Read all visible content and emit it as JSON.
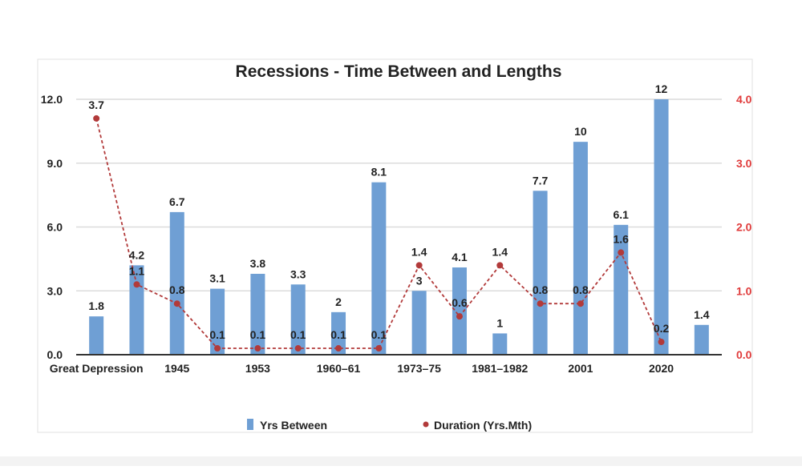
{
  "chart_data": {
    "type": "bar+line",
    "title": "Recessions - Time Between and Lengths",
    "categories": [
      "Great Depression",
      "",
      "1945",
      "",
      "1953",
      "",
      "1960–61",
      "",
      "1973–75",
      "",
      "1981–1982",
      "",
      "2001",
      "",
      "2020",
      ""
    ],
    "series": [
      {
        "name": "Yrs Between",
        "type": "bar",
        "axis": "left",
        "color": "#6f9fd4",
        "values": [
          1.8,
          4.2,
          6.7,
          3.1,
          3.8,
          3.3,
          2,
          8.1,
          3,
          4.1,
          1,
          7.7,
          10,
          6.1,
          12,
          1.4
        ],
        "labels": [
          "1.8",
          "4.2",
          "6.7",
          "3.1",
          "3.8",
          "3.3",
          "2",
          "8.1",
          "3",
          "4.1",
          "1",
          "7.7",
          "10",
          "6.1",
          "12",
          "1.4"
        ]
      },
      {
        "name": "Duration (Yrs.Mth)",
        "type": "line",
        "style": "dashed",
        "axis": "right",
        "color": "#b23a3a",
        "values": [
          3.7,
          1.1,
          0.8,
          0.1,
          0.1,
          0.1,
          0.1,
          0.1,
          1.4,
          0.6,
          1.4,
          0.8,
          0.8,
          1.6,
          0.2,
          null
        ],
        "labels": [
          "3.7",
          "1.1",
          "0.8",
          "0.1",
          "0.1",
          "0.1",
          "0.1",
          "0.1",
          "1.4",
          "0.6",
          "1.4",
          "0.8",
          "0.8",
          "1.6",
          "0.2",
          ""
        ]
      }
    ],
    "left_axis": {
      "ylim": [
        0,
        12
      ],
      "ticks": [
        "0.0",
        "3.0",
        "6.0",
        "9.0",
        "12.0"
      ]
    },
    "right_axis": {
      "ylim": [
        0,
        4
      ],
      "ticks": [
        "0.0",
        "1.0",
        "2.0",
        "3.0",
        "4.0"
      ],
      "color": "#e03b3b"
    },
    "grid": true,
    "legend": "bottom"
  }
}
